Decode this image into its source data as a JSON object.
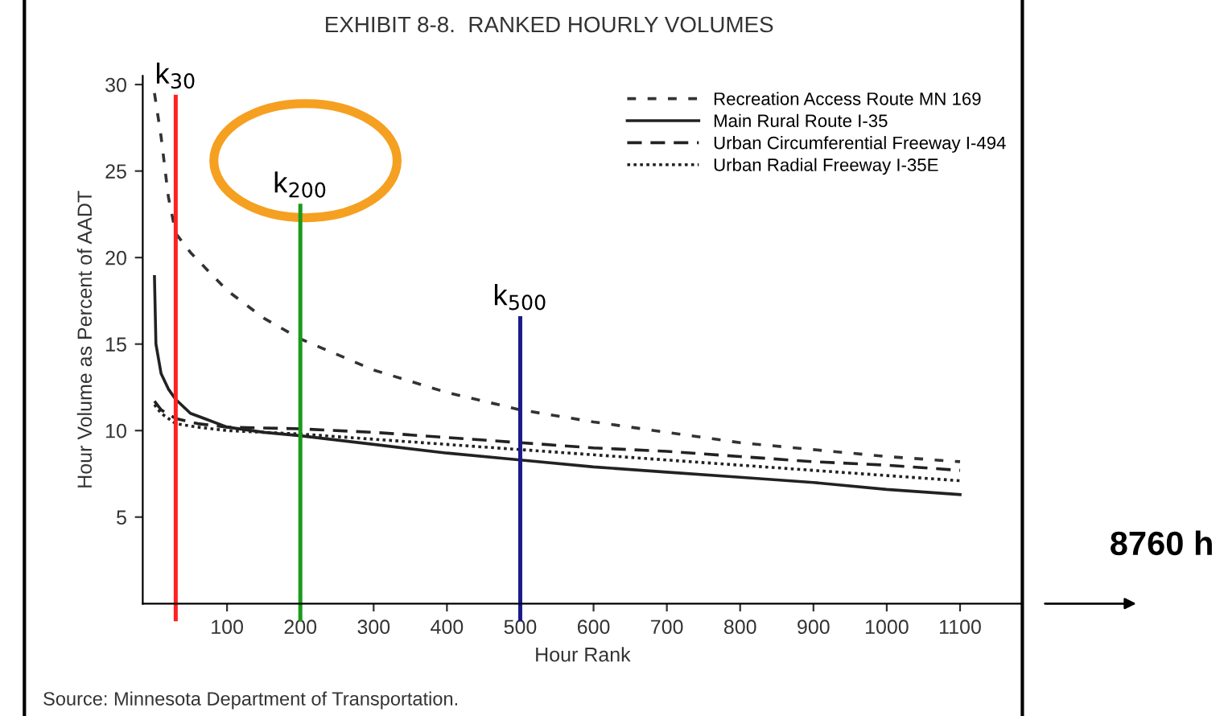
{
  "chart_data": {
    "type": "line",
    "title": "EXHIBIT 8-8.  RANKED HOURLY VOLUMES",
    "xlabel": "Hour Rank",
    "ylabel": "Hour Volume as Percent of AADT",
    "series": [
      {
        "name": "Recreation Access Route MN 169",
        "color": "#333333",
        "line_style": "dashed",
        "x": [
          1,
          10,
          20,
          30,
          50,
          100,
          150,
          200,
          300,
          400,
          500,
          600,
          700,
          800,
          900,
          1000,
          1100
        ],
        "values": [
          29.5,
          27,
          23.5,
          21.4,
          20.3,
          18.1,
          16.5,
          15.3,
          13.5,
          12.2,
          11.2,
          10.5,
          9.9,
          9.3,
          8.9,
          8.5,
          8.2
        ]
      },
      {
        "name": "Main Rural Route I-35",
        "color": "#222222",
        "line_style": "solid",
        "x": [
          1,
          3,
          10,
          20,
          30,
          50,
          100,
          150,
          200,
          300,
          400,
          500,
          600,
          700,
          800,
          900,
          1000,
          1100
        ],
        "values": [
          18.9,
          15,
          13.3,
          12.4,
          11.8,
          11.0,
          10.2,
          9.9,
          9.7,
          9.2,
          8.7,
          8.3,
          7.9,
          7.6,
          7.3,
          7.0,
          6.6,
          6.3
        ]
      },
      {
        "name": "Urban Circumferential Freeway I-494",
        "color": "#222222",
        "line_style": "dashed",
        "x": [
          1,
          10,
          30,
          60,
          100,
          200,
          300,
          400,
          500,
          600,
          700,
          800,
          900,
          1000,
          1100
        ],
        "values": [
          11.7,
          11.2,
          10.7,
          10.4,
          10.2,
          10.1,
          9.9,
          9.6,
          9.3,
          9.0,
          8.8,
          8.5,
          8.2,
          8.0,
          7.7
        ]
      },
      {
        "name": "Urban Radial Freeway I-35E",
        "color": "#222222",
        "line_style": "dotted",
        "x": [
          1,
          10,
          30,
          60,
          100,
          200,
          300,
          400,
          500,
          600,
          700,
          800,
          900,
          1000,
          1100
        ],
        "values": [
          11.5,
          11.0,
          10.4,
          10.2,
          10.0,
          9.8,
          9.5,
          9.2,
          8.9,
          8.6,
          8.3,
          8.0,
          7.7,
          7.4,
          7.1
        ]
      }
    ],
    "xlim": [
      -15,
      1185
    ],
    "ylim": [
      0,
      30.5
    ],
    "xticks": [
      100,
      200,
      300,
      400,
      500,
      600,
      700,
      800,
      900,
      1000,
      1100
    ],
    "yticks": [
      5,
      10,
      15,
      20,
      25,
      30
    ],
    "ref_lines": [
      {
        "axis": "x",
        "value": 30,
        "label": "k$_{30}$",
        "color": "#ff2020"
      },
      {
        "axis": "x",
        "value": 200,
        "label": "k$_{200}$",
        "color": "#1a9a1a"
      },
      {
        "axis": "x",
        "value": 500,
        "label": "k$_{500}$",
        "color": "#1a1a8a"
      }
    ],
    "annotations": [
      "Source: Minnesota Department of Transportation.",
      "8760 h"
    ],
    "grid": false,
    "legend": "top right"
  }
}
